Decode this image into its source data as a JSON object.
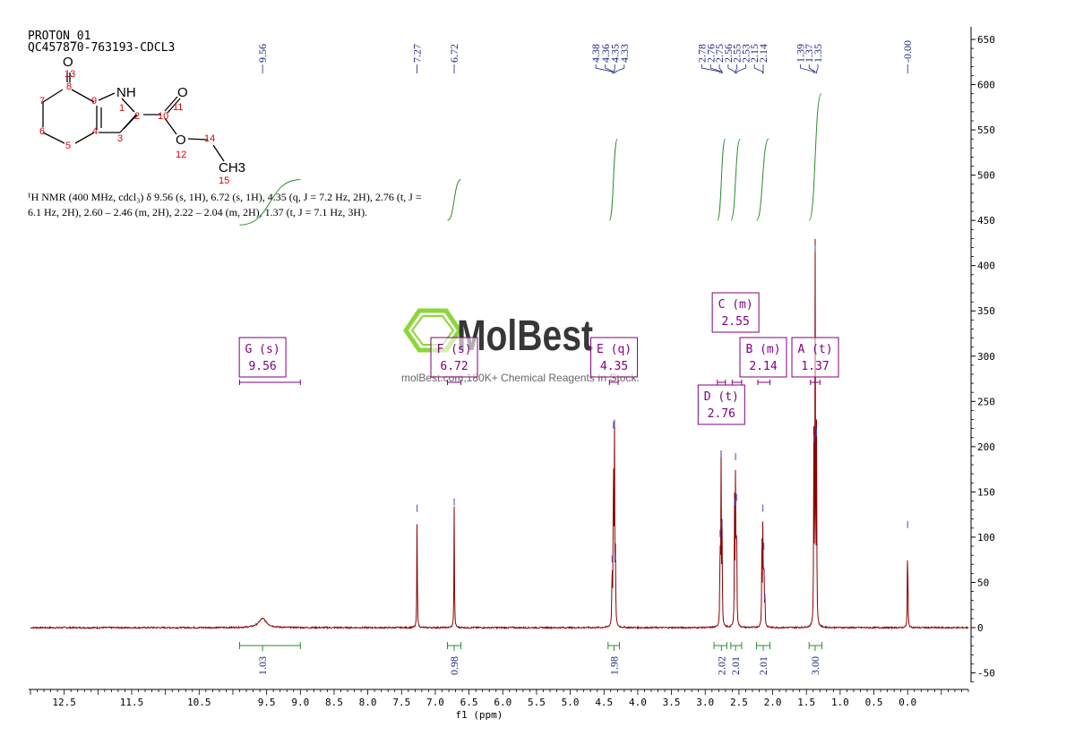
{
  "header": {
    "title_line1": "PROTON_01",
    "title_line2": "QC457870-763193-CDCL3"
  },
  "nmr_text": {
    "line1": "¹H NMR (400 MHz, cdcl₃) δ 9.56 (s, 1H), 6.72 (s, 1H), 4.35 (q, J = 7.2 Hz, 2H), 2.76 (t, J =",
    "line2": "6.1 Hz, 2H), 2.60 – 2.46 (m, 2H), 2.22 – 2.04 (m, 2H), 1.37 (t, J = 7.1 Hz, 3H)."
  },
  "watermark": {
    "brand": "MolBest",
    "tagline": "molBest.com,180K+ Chemical Reagents In Stock.",
    "logo_icon": "hexagon-logo-icon",
    "color": "#7ed321"
  },
  "structure": {
    "atoms": {
      "o13": "O",
      "num13": "13",
      "nh": "NH",
      "num1": "1",
      "num2": "2",
      "num3": "3",
      "num4": "4",
      "num5": "5",
      "num6": "6",
      "num7": "7",
      "num8": "8",
      "num9": "9",
      "num10": "10",
      "o11": "O",
      "num11": "11",
      "o12": "O",
      "num12": "12",
      "num14": "14",
      "ch3": "CH3",
      "num15": "15"
    }
  },
  "colors": {
    "spectrum": "#8b0000",
    "integral": "#2e8b2e",
    "multiplet": "#800080",
    "peak_label": "#1a237e",
    "axis": "#000000",
    "atom_number": "#e00000"
  },
  "chart_data": {
    "type": "line",
    "xlabel": "f1 (ppm)",
    "xlim": [
      13.0,
      -0.9
    ],
    "ylim": [
      -65,
      660
    ],
    "x_ticks": [
      "12.5",
      "11.5",
      "10.5",
      "9.5",
      "9.0",
      "8.5",
      "8.0",
      "7.5",
      "7.0",
      "6.5",
      "6.0",
      "5.5",
      "5.0",
      "4.5",
      "4.0",
      "3.5",
      "3.0",
      "2.5",
      "2.0",
      "1.5",
      "1.0",
      "0.5",
      "0.0"
    ],
    "x_tick_values": [
      12.5,
      11.5,
      10.5,
      9.5,
      9.0,
      8.5,
      8.0,
      7.5,
      7.0,
      6.5,
      6.0,
      5.5,
      5.0,
      4.5,
      4.0,
      3.5,
      3.0,
      2.5,
      2.0,
      1.5,
      1.0,
      0.5,
      0.0
    ],
    "y_ticks": [
      "650",
      "600",
      "550",
      "500",
      "450",
      "400",
      "350",
      "300",
      "250",
      "200",
      "150",
      "100",
      "50",
      "0",
      "-50"
    ],
    "y_tick_values": [
      650,
      600,
      550,
      500,
      450,
      400,
      350,
      300,
      250,
      200,
      150,
      100,
      50,
      0,
      -50
    ],
    "peak_labels": [
      "9.56",
      "7.27",
      "6.72",
      "4.38",
      "4.36",
      "4.35",
      "4.33",
      "2.78",
      "2.76",
      "2.75",
      "2.56",
      "2.55",
      "2.53",
      "2.15",
      "2.14",
      "1.39",
      "1.37",
      "1.35",
      "-0.00"
    ],
    "peaks": [
      {
        "ppm": 9.56,
        "height": 10,
        "width": 0.07
      },
      {
        "ppm": 7.27,
        "height": 128,
        "width": 0.004
      },
      {
        "ppm": 6.72,
        "height": 135,
        "width": 0.004
      },
      {
        "ppm": 4.38,
        "height": 72,
        "width": 0.004
      },
      {
        "ppm": 4.36,
        "height": 220,
        "width": 0.004
      },
      {
        "ppm": 4.345,
        "height": 222,
        "width": 0.004
      },
      {
        "ppm": 4.33,
        "height": 74,
        "width": 0.004
      },
      {
        "ppm": 2.78,
        "height": 100,
        "width": 0.004
      },
      {
        "ppm": 2.765,
        "height": 188,
        "width": 0.004
      },
      {
        "ppm": 2.75,
        "height": 110,
        "width": 0.004
      },
      {
        "ppm": 2.565,
        "height": 135,
        "width": 0.004
      },
      {
        "ppm": 2.55,
        "height": 185,
        "width": 0.004
      },
      {
        "ppm": 2.535,
        "height": 140,
        "width": 0.004
      },
      {
        "ppm": 2.16,
        "height": 88,
        "width": 0.004
      },
      {
        "ppm": 2.145,
        "height": 128,
        "width": 0.004
      },
      {
        "ppm": 2.13,
        "height": 86,
        "width": 0.004
      },
      {
        "ppm": 2.115,
        "height": 30,
        "width": 0.004
      },
      {
        "ppm": 1.39,
        "height": 205,
        "width": 0.004
      },
      {
        "ppm": 1.37,
        "height": 415,
        "width": 0.004
      },
      {
        "ppm": 1.35,
        "height": 212,
        "width": 0.004
      },
      {
        "ppm": 0.0,
        "height": 110,
        "width": 0.004
      }
    ],
    "integrations": [
      {
        "from": 9.9,
        "to": 9.0,
        "value": "1.03",
        "center": 9.56
      },
      {
        "from": 6.82,
        "to": 6.62,
        "value": "0.98",
        "center": 6.72
      },
      {
        "from": 4.44,
        "to": 4.27,
        "value": "1.98",
        "center": 4.35
      },
      {
        "from": 2.87,
        "to": 2.68,
        "value": "2.02",
        "center": 2.76
      },
      {
        "from": 2.62,
        "to": 2.46,
        "value": "2.01",
        "center": 2.55
      },
      {
        "from": 2.24,
        "to": 2.04,
        "value": "2.01",
        "center": 2.14
      },
      {
        "from": 1.46,
        "to": 1.27,
        "value": "3.00",
        "center": 1.37
      }
    ],
    "multiplets": [
      {
        "letter": "G",
        "type": "(s)",
        "shift": "9.56",
        "from": 9.9,
        "to": 9.0
      },
      {
        "letter": "F",
        "type": "(s)",
        "shift": "6.72",
        "from": 6.82,
        "to": 6.62
      },
      {
        "letter": "E",
        "type": "(q)",
        "shift": "4.35",
        "from": 4.42,
        "to": 4.29
      },
      {
        "letter": "D",
        "type": "(t)",
        "shift": "2.76",
        "from": 2.82,
        "to": 2.7
      },
      {
        "letter": "C",
        "type": "(m)",
        "shift": "2.55",
        "from": 2.6,
        "to": 2.46
      },
      {
        "letter": "B",
        "type": "(m)",
        "shift": "2.14",
        "from": 2.22,
        "to": 2.04
      },
      {
        "letter": "A",
        "type": "(t)",
        "shift": "1.37",
        "from": 1.44,
        "to": 1.3
      }
    ],
    "integral_curves": [
      {
        "from": 9.9,
        "to": 9.0,
        "y_start": 445,
        "y_end": 495
      },
      {
        "from": 6.82,
        "to": 6.62,
        "y_start": 450,
        "y_end": 495
      },
      {
        "from": 4.42,
        "to": 4.3,
        "y_start": 450,
        "y_end": 540
      },
      {
        "from": 2.82,
        "to": 2.7,
        "y_start": 450,
        "y_end": 540
      },
      {
        "from": 2.62,
        "to": 2.48,
        "y_start": 450,
        "y_end": 540
      },
      {
        "from": 2.24,
        "to": 2.06,
        "y_start": 450,
        "y_end": 540
      },
      {
        "from": 1.46,
        "to": 1.28,
        "y_start": 450,
        "y_end": 590
      }
    ]
  }
}
